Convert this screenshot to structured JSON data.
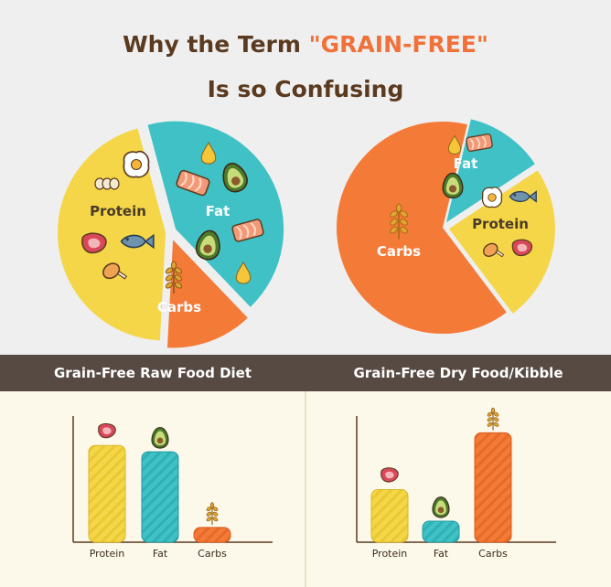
{
  "title": {
    "line1_prefix": "Why the Term ",
    "line1_accent": "\"GRAIN-FREE\"",
    "line2": "Is so Confusing"
  },
  "colors": {
    "protein": "#f4d648",
    "fat": "#3fc1c6",
    "carbs": "#f47a38",
    "title": "#5b3b20",
    "accent": "#f0713a",
    "band": "#574a42"
  },
  "chart_data": [
    {
      "type": "pie",
      "name": "raw-pie",
      "categories": [
        "Protein",
        "Fat",
        "Carbs"
      ],
      "values": [
        45,
        42,
        13
      ]
    },
    {
      "type": "pie",
      "name": "kibble-pie",
      "categories": [
        "Carbs",
        "Fat",
        "Protein"
      ],
      "values": [
        64,
        12,
        24
      ]
    },
    {
      "type": "bar",
      "name": "raw-bar",
      "title": "Grain-Free Raw Food Diet",
      "categories": [
        "Protein",
        "Fat",
        "Carbs"
      ],
      "values": [
        46,
        43,
        7
      ],
      "ylim": [
        0,
        60
      ]
    },
    {
      "type": "bar",
      "name": "kibble-bar",
      "title": "Grain-Free Dry Food/Kibble",
      "categories": [
        "Protein",
        "Fat",
        "Carbs"
      ],
      "values": [
        25,
        10,
        52
      ],
      "ylim": [
        0,
        60
      ]
    }
  ]
}
